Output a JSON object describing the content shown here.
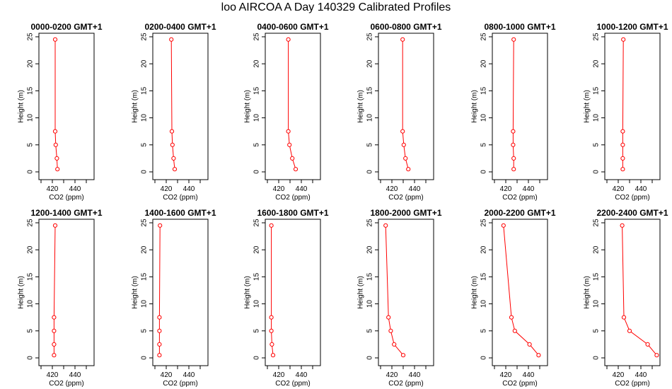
{
  "figure": {
    "title": "loo AIRCOA A  Day 140329  Calibrated Profiles"
  },
  "style": {
    "series_color": "#ff0000",
    "axis_color": "#000000",
    "background": "#ffffff"
  },
  "chart_data": [
    {
      "type": "line",
      "title": "0000-0200 GMT+1",
      "xlabel": "CO2 (ppm)",
      "ylabel": "Height (m)",
      "xlim": [
        410,
        455
      ],
      "ylim": [
        0,
        25
      ],
      "xticks": [
        420,
        440
      ],
      "yticks": [
        0,
        5,
        10,
        15,
        20,
        25
      ],
      "x": [
        422.5,
        422.5,
        423,
        424,
        424.5
      ],
      "y": [
        24.5,
        7.5,
        5,
        2.5,
        0.5
      ],
      "grid": false,
      "marker": "open-circle"
    },
    {
      "type": "line",
      "title": "0200-0400 GMT+1",
      "xlabel": "CO2 (ppm)",
      "ylabel": "Height (m)",
      "xlim": [
        410,
        455
      ],
      "ylim": [
        0,
        25
      ],
      "xticks": [
        420,
        440
      ],
      "yticks": [
        0,
        5,
        10,
        15,
        20,
        25
      ],
      "x": [
        424.5,
        425,
        425.5,
        426.5,
        427.5
      ],
      "y": [
        24.5,
        7.5,
        5,
        2.5,
        0.5
      ],
      "grid": false,
      "marker": "open-circle"
    },
    {
      "type": "line",
      "title": "0400-0600 GMT+1",
      "xlabel": "CO2 (ppm)",
      "ylabel": "Height (m)",
      "xlim": [
        410,
        455
      ],
      "ylim": [
        0,
        25
      ],
      "xticks": [
        420,
        440
      ],
      "yticks": [
        0,
        5,
        10,
        15,
        20,
        25
      ],
      "x": [
        428.5,
        428.5,
        429.5,
        432,
        435
      ],
      "y": [
        24.5,
        7.5,
        5,
        2.5,
        0.5
      ],
      "grid": false,
      "marker": "open-circle"
    },
    {
      "type": "line",
      "title": "0600-0800 GMT+1",
      "xlabel": "CO2 (ppm)",
      "ylabel": "Height (m)",
      "xlim": [
        410,
        455
      ],
      "ylim": [
        0,
        25
      ],
      "xticks": [
        420,
        440
      ],
      "yticks": [
        0,
        5,
        10,
        15,
        20,
        25
      ],
      "x": [
        429.5,
        429.5,
        430.5,
        432,
        434.5
      ],
      "y": [
        24.5,
        7.5,
        5,
        2.5,
        0.5
      ],
      "grid": false,
      "marker": "open-circle"
    },
    {
      "type": "line",
      "title": "0800-1000 GMT+1",
      "xlabel": "CO2 (ppm)",
      "ylabel": "Height (m)",
      "xlim": [
        410,
        455
      ],
      "ylim": [
        0,
        25
      ],
      "xticks": [
        420,
        440
      ],
      "yticks": [
        0,
        5,
        10,
        15,
        20,
        25
      ],
      "x": [
        427,
        426.5,
        426.5,
        427,
        427
      ],
      "y": [
        24.5,
        7.5,
        5,
        2.5,
        0.5
      ],
      "grid": false,
      "marker": "open-circle"
    },
    {
      "type": "line",
      "title": "1000-1200 GMT+1",
      "xlabel": "CO2 (ppm)",
      "ylabel": "Height (m)",
      "xlim": [
        410,
        455
      ],
      "ylim": [
        0,
        25
      ],
      "xticks": [
        420,
        440
      ],
      "yticks": [
        0,
        5,
        10,
        15,
        20,
        25
      ],
      "x": [
        424.5,
        424,
        424,
        424,
        424
      ],
      "y": [
        24.5,
        7.5,
        5,
        2.5,
        0.5
      ],
      "grid": false,
      "marker": "open-circle"
    },
    {
      "type": "line",
      "title": "1200-1400 GMT+1",
      "xlabel": "CO2 (ppm)",
      "ylabel": "Height (m)",
      "xlim": [
        410,
        455
      ],
      "ylim": [
        0,
        25
      ],
      "xticks": [
        420,
        440
      ],
      "yticks": [
        0,
        5,
        10,
        15,
        20,
        25
      ],
      "x": [
        422.5,
        421.5,
        421.5,
        421.5,
        421.5
      ],
      "y": [
        24.5,
        7.5,
        5,
        2.5,
        0.5
      ],
      "grid": false,
      "marker": "open-circle"
    },
    {
      "type": "line",
      "title": "1400-1600 GMT+1",
      "xlabel": "CO2 (ppm)",
      "ylabel": "Height (m)",
      "xlim": [
        410,
        455
      ],
      "ylim": [
        0,
        25
      ],
      "xticks": [
        420,
        440
      ],
      "yticks": [
        0,
        5,
        10,
        15,
        20,
        25
      ],
      "x": [
        414.5,
        414,
        414,
        414,
        414
      ],
      "y": [
        24.5,
        7.5,
        5,
        2.5,
        0.5
      ],
      "grid": false,
      "marker": "open-circle"
    },
    {
      "type": "line",
      "title": "1600-1800 GMT+1",
      "xlabel": "CO2 (ppm)",
      "ylabel": "Height (m)",
      "xlim": [
        410,
        455
      ],
      "ylim": [
        0,
        25
      ],
      "xticks": [
        420,
        440
      ],
      "yticks": [
        0,
        5,
        10,
        15,
        20,
        25
      ],
      "x": [
        413.5,
        413.5,
        413.5,
        414,
        415
      ],
      "y": [
        24.5,
        7.5,
        5,
        2.5,
        0.5
      ],
      "grid": false,
      "marker": "open-circle"
    },
    {
      "type": "line",
      "title": "1800-2000 GMT+1",
      "xlabel": "CO2 (ppm)",
      "ylabel": "Height (m)",
      "xlim": [
        410,
        455
      ],
      "ylim": [
        0,
        25
      ],
      "xticks": [
        420,
        440
      ],
      "yticks": [
        0,
        5,
        10,
        15,
        20,
        25
      ],
      "x": [
        414.5,
        417,
        419,
        422,
        430
      ],
      "y": [
        24.5,
        7.5,
        5,
        2.5,
        0.5
      ],
      "grid": false,
      "marker": "open-circle"
    },
    {
      "type": "line",
      "title": "2000-2200 GMT+1",
      "xlabel": "CO2 (ppm)",
      "ylabel": "Height (m)",
      "xlim": [
        410,
        455
      ],
      "ylim": [
        0,
        25
      ],
      "xticks": [
        420,
        440
      ],
      "yticks": [
        0,
        5,
        10,
        15,
        20,
        25
      ],
      "x": [
        418,
        425,
        428,
        441,
        449
      ],
      "y": [
        24.5,
        7.5,
        5,
        2.5,
        0.5
      ],
      "grid": false,
      "marker": "open-circle"
    },
    {
      "type": "line",
      "title": "2200-2400 GMT+1",
      "xlabel": "CO2 (ppm)",
      "ylabel": "Height (m)",
      "xlim": [
        410,
        455
      ],
      "ylim": [
        0,
        25
      ],
      "xticks": [
        420,
        440
      ],
      "yticks": [
        0,
        5,
        10,
        15,
        20,
        25
      ],
      "x": [
        423.5,
        425,
        430,
        446,
        454
      ],
      "y": [
        24.5,
        7.5,
        5,
        2.5,
        0.5
      ],
      "grid": false,
      "marker": "open-circle"
    }
  ]
}
